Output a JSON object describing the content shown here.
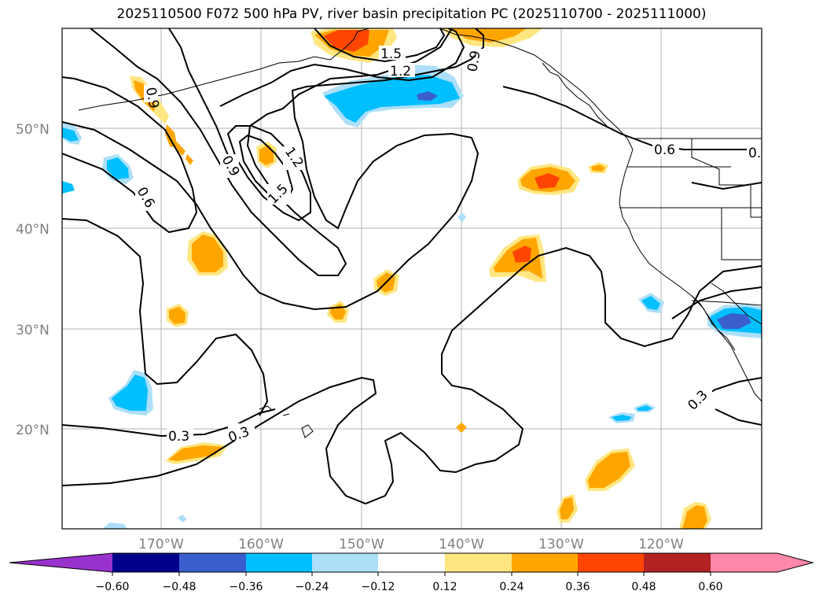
{
  "title": "2025110500 F072 500 hPa PV, river basin precipitation PC (2025110700 - 2025111000)",
  "colors": {
    "neg_extreme": "#9932CC",
    "neg_060": "#00008B",
    "neg_048": "#3A5FCD",
    "neg_036": "#00BFFF",
    "neg_024": "#ADDFF8",
    "neutral": "#FFFFFF",
    "pos_012": "#FFE680",
    "pos_024": "#FFA500",
    "pos_036": "#FF4500",
    "pos_048": "#B22222",
    "pos_extreme": "#FF88AA"
  },
  "map": {
    "lon_range": [
      -180,
      -110
    ],
    "lat_range": [
      10,
      60
    ],
    "lat_labels": [
      "50°N",
      "40°N",
      "30°N",
      "20°N"
    ],
    "lon_labels": [
      "170°W",
      "160°W",
      "150°W",
      "140°W",
      "130°W",
      "120°W"
    ],
    "contour_labels": [
      "1.5",
      "1.2",
      "0.9",
      "1.2",
      "0.9",
      "1.5",
      "0.6",
      "0.6",
      "0.3",
      "0.3",
      "0.3",
      "0.9",
      "0."
    ]
  },
  "colorbar": {
    "tick_labels": [
      "−0.60",
      "−0.48",
      "−0.36",
      "−0.24",
      "−0.12",
      "0.12",
      "0.24",
      "0.36",
      "0.48",
      "0.60"
    ]
  }
}
